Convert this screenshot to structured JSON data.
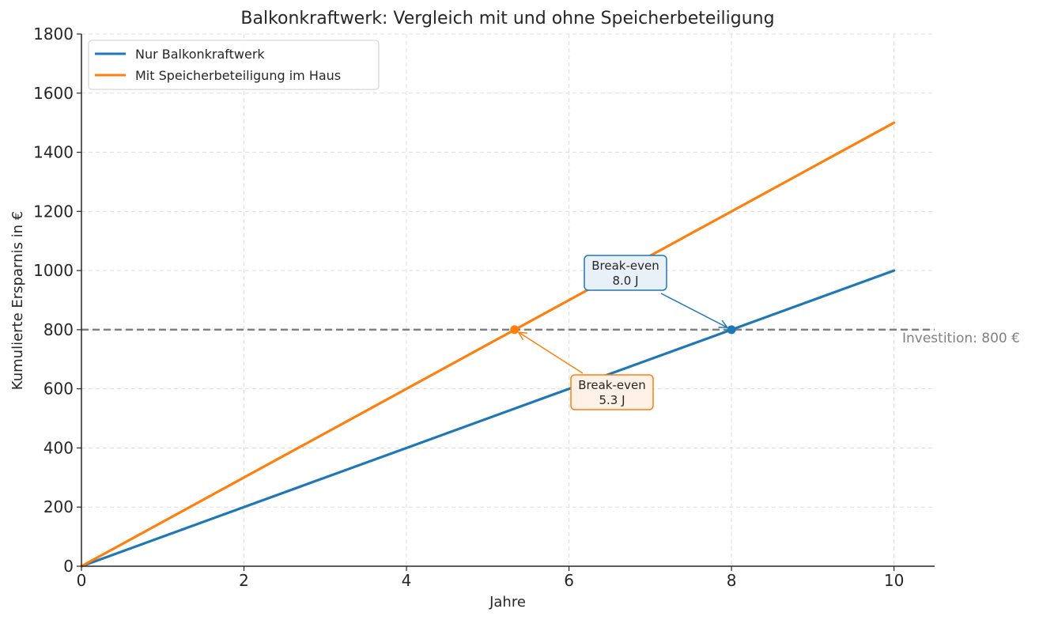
{
  "chart_data": {
    "type": "line",
    "title": "Balkonkraftwerk: Vergleich mit und ohne Speicherbeteiligung",
    "xlabel": "Jahre",
    "ylabel": "Kumulierte Ersparnis in €",
    "xlim": [
      0,
      10.5
    ],
    "ylim": [
      0,
      1800
    ],
    "xticks": [
      0,
      2,
      4,
      6,
      8,
      10
    ],
    "yticks": [
      0,
      200,
      400,
      600,
      800,
      1000,
      1200,
      1400,
      1600,
      1800
    ],
    "grid": true,
    "legend_position": "top-left",
    "series": [
      {
        "name": "Nur Balkonkraftwerk",
        "color": "#1f77b4",
        "x": [
          0,
          10
        ],
        "y": [
          0,
          1000
        ]
      },
      {
        "name": "Mit Speicherbeteiligung im Haus",
        "color": "#ff7f0e",
        "x": [
          0,
          10
        ],
        "y": [
          0,
          1500
        ]
      }
    ],
    "reference_line": {
      "y": 800,
      "label": "Investition: 800 €",
      "color": "#808080"
    },
    "annotations": [
      {
        "series": 0,
        "x": 8.0,
        "y": 800,
        "line1": "Break-even",
        "line2": "8.0 J",
        "color": "#1f77b4",
        "fill": "#e9f1f8"
      },
      {
        "series": 1,
        "x": 5.33,
        "y": 800,
        "line1": "Break-even",
        "line2": "5.3 J",
        "color": "#ff7f0e",
        "fill": "#fff1e5"
      }
    ]
  }
}
